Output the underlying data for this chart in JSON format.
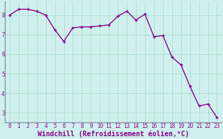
{
  "x": [
    0,
    1,
    2,
    3,
    4,
    5,
    6,
    7,
    8,
    9,
    10,
    11,
    12,
    13,
    14,
    15,
    16,
    17,
    18,
    19,
    20,
    21,
    22,
    23
  ],
  "y": [
    8.0,
    8.3,
    8.3,
    8.2,
    8.0,
    7.25,
    6.65,
    7.35,
    7.4,
    7.4,
    7.45,
    7.5,
    7.95,
    8.2,
    7.75,
    8.05,
    6.9,
    6.95,
    5.85,
    5.45,
    4.35,
    3.35,
    3.45,
    2.75
  ],
  "line_color": "#880088",
  "markersize": 2.5,
  "linewidth": 1.0,
  "xlabel": "Windchill (Refroidissement éolien,°C)",
  "xlabel_fontsize": 7,
  "bg_color": "#cff0ee",
  "grid_color": "#aaddcc",
  "xlim": [
    -0.5,
    23.5
  ],
  "ylim": [
    2.5,
    8.7
  ],
  "yticks": [
    3,
    4,
    5,
    6,
    7,
    8
  ],
  "xticks": [
    0,
    1,
    2,
    3,
    4,
    5,
    6,
    7,
    8,
    9,
    10,
    11,
    12,
    13,
    14,
    15,
    16,
    17,
    18,
    19,
    20,
    21,
    22,
    23
  ],
  "tick_fontsize": 5.5,
  "tick_color": "#880088",
  "spine_color": "#8899aa"
}
